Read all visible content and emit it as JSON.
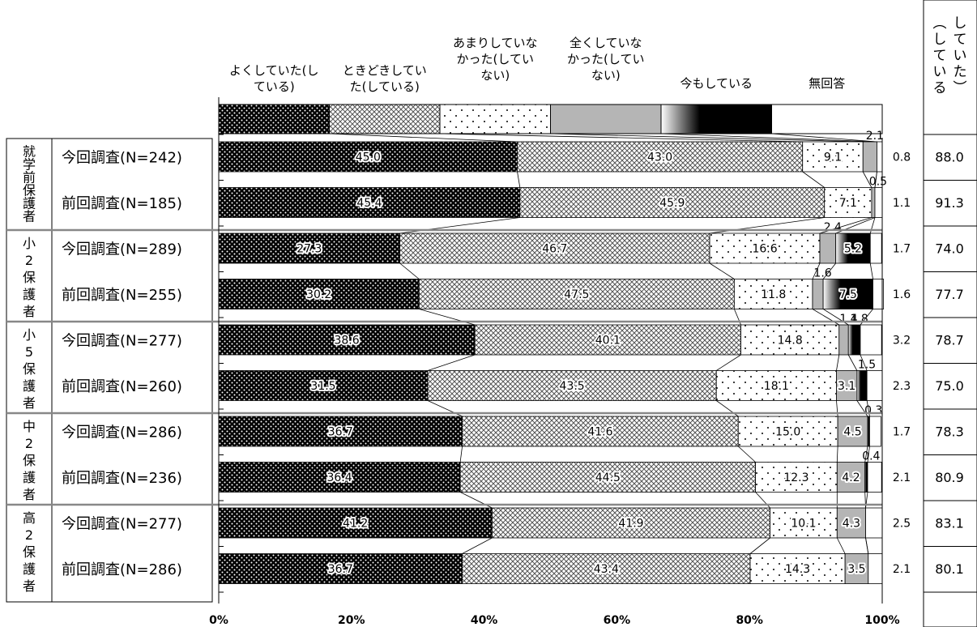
{
  "chart_data": {
    "type": "bar",
    "orientation": "horizontal",
    "stacked": true,
    "percent_axis": true,
    "xlim": [
      0,
      100
    ],
    "x_ticks": [
      "0%",
      "20%",
      "40%",
      "60%",
      "80%",
      "100%"
    ],
    "legend": [
      {
        "name": "よくしていた(している)",
        "lines": [
          "よくしていた(し",
          "ている)"
        ]
      },
      {
        "name": "ときどきしていた(している)",
        "lines": [
          "ときどきしてい",
          "た(している)"
        ]
      },
      {
        "name": "あまりしていなかった(していない)",
        "lines": [
          "あまりしていな",
          "かった(してい",
          "ない)"
        ]
      },
      {
        "name": "全くしていなかった(していない)",
        "lines": [
          "全くしていな",
          "かった(してい",
          "ない)"
        ]
      },
      {
        "name": "今もしている",
        "lines": [
          "今もしている"
        ]
      },
      {
        "name": "無回答",
        "lines": [
          "無回答"
        ]
      }
    ],
    "groups": [
      {
        "label": "就学前保護者",
        "chars": [
          "就",
          "学",
          "前",
          "保",
          "護",
          "者"
        ]
      },
      {
        "label": "小2保護者",
        "chars": [
          "小",
          "2",
          "保",
          "護",
          "者"
        ]
      },
      {
        "label": "小5保護者",
        "chars": [
          "小",
          "5",
          "保",
          "護",
          "者"
        ]
      },
      {
        "label": "中2保護者",
        "chars": [
          "中",
          "2",
          "保",
          "護",
          "者"
        ]
      },
      {
        "label": "高2保護者",
        "chars": [
          "高",
          "2",
          "保",
          "護",
          "者"
        ]
      }
    ],
    "rows": [
      {
        "label": "今回調査(N=242)",
        "values": [
          45.0,
          43.0,
          9.1,
          2.1,
          0.0,
          0.8
        ],
        "labels": [
          "45.0",
          "43.0",
          "9.1",
          "2.1",
          "",
          "0.8"
        ],
        "total": "88.0"
      },
      {
        "label": "前回調査(N=185)",
        "values": [
          45.4,
          45.9,
          7.1,
          0.5,
          0.0,
          1.1
        ],
        "labels": [
          "45.4",
          "45.9",
          "7.1",
          "0.5",
          "",
          "1.1"
        ],
        "total": "91.3"
      },
      {
        "label": "今回調査(N=289)",
        "values": [
          27.3,
          46.7,
          16.6,
          2.4,
          5.2,
          1.7
        ],
        "labels": [
          "27.3",
          "46.7",
          "16.6",
          "2.4",
          "5.2",
          "1.7"
        ],
        "total": "74.0"
      },
      {
        "label": "前回調査(N=255)",
        "values": [
          30.2,
          47.5,
          11.8,
          1.6,
          7.5,
          1.6
        ],
        "labels": [
          "30.2",
          "47.5",
          "11.8",
          "1.6",
          "7.5",
          "1.6"
        ],
        "total": "77.7"
      },
      {
        "label": "今回調査(N=277)",
        "values": [
          38.6,
          40.1,
          14.8,
          1.4,
          1.8,
          3.2
        ],
        "labels": [
          "38.6",
          "40.1",
          "14.8",
          "1.4",
          "1.8",
          "3.2"
        ],
        "total": "78.7"
      },
      {
        "label": "前回調査(N=260)",
        "values": [
          31.5,
          43.5,
          18.1,
          3.1,
          1.5,
          2.3
        ],
        "labels": [
          "31.5",
          "43.5",
          "18.1",
          "3.1",
          "1.5",
          "2.3"
        ],
        "total": "75.0"
      },
      {
        "label": "今回調査(N=286)",
        "values": [
          36.7,
          41.6,
          15.0,
          4.5,
          0.3,
          1.7
        ],
        "labels": [
          "36.7",
          "41.6",
          "15.0",
          "4.5",
          "0.3",
          "1.7"
        ],
        "total": "78.3"
      },
      {
        "label": "前回調査(N=236)",
        "values": [
          36.4,
          44.5,
          12.3,
          4.2,
          0.4,
          2.1
        ],
        "labels": [
          "36.4",
          "44.5",
          "12.3",
          "4.2",
          "0.4",
          "2.1"
        ],
        "total": "80.9"
      },
      {
        "label": "今回調査(N=277)",
        "values": [
          41.2,
          41.9,
          10.1,
          4.3,
          0.0,
          2.5
        ],
        "labels": [
          "41.2",
          "41.9",
          "10.1",
          "4.3",
          "",
          "2.5"
        ],
        "total": "83.1"
      },
      {
        "label": "前回調査(N=286)",
        "values": [
          36.7,
          43.4,
          14.3,
          3.5,
          0.0,
          2.1
        ],
        "labels": [
          "36.7",
          "43.4",
          "14.3",
          "3.5",
          "",
          "2.1"
        ],
        "total": "80.1"
      }
    ],
    "right_column": {
      "header_chars": [
        "︵",
        "し",
        "て",
        "い",
        "る",
        "し",
        "て",
        "い",
        "た",
        "︶"
      ]
    }
  }
}
